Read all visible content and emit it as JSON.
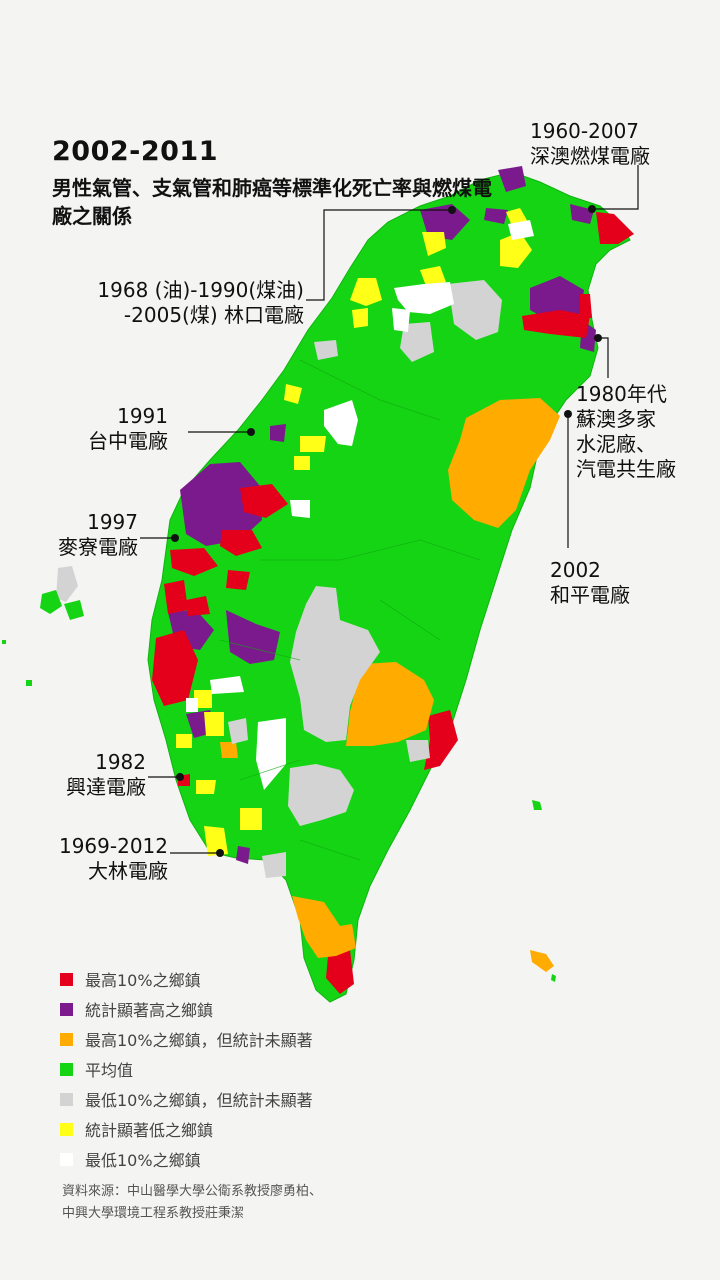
{
  "title": "2002-2011",
  "subtitle": "男性氣管、支氣管和肺癌等標準化死亡率與燃煤電廠之關係",
  "colors": {
    "red": "#e4001b",
    "purple": "#7b1a8c",
    "orange": "#ffab00",
    "green": "#14d414",
    "gray": "#d3d3d3",
    "yellow": "#ffff17",
    "white": "#ffffff"
  },
  "plants": [
    {
      "id": "shenao",
      "lines": [
        "1960-2007",
        "深澳燃煤電廠"
      ]
    },
    {
      "id": "linkou",
      "lines": [
        "1968 (油)-1990(煤油)",
        "-2005(煤) 林口電廠"
      ]
    },
    {
      "id": "suao",
      "lines": [
        "1980年代",
        "蘇澳多家",
        "水泥廠、",
        "汽電共生廠"
      ]
    },
    {
      "id": "taichung",
      "lines": [
        "1991",
        "台中電廠"
      ]
    },
    {
      "id": "mailiao",
      "lines": [
        "1997",
        "麥寮電廠"
      ]
    },
    {
      "id": "heping",
      "lines": [
        "2002",
        "和平電廠"
      ]
    },
    {
      "id": "hsinta",
      "lines": [
        "1982",
        "興達電廠"
      ]
    },
    {
      "id": "talin",
      "lines": [
        "1969-2012",
        "大林電廠"
      ]
    }
  ],
  "legend": [
    {
      "label": "最高10%之鄉鎮",
      "color": "#e4001b"
    },
    {
      "label": "統計顯著高之鄉鎮",
      "color": "#7b1a8c"
    },
    {
      "label": "最高10%之鄉鎮，但統計未顯著",
      "color": "#ffab00"
    },
    {
      "label": "平均值",
      "color": "#14d414"
    },
    {
      "label": "最低10%之鄉鎮，但統計未顯著",
      "color": "#d3d3d3"
    },
    {
      "label": "統計顯著低之鄉鎮",
      "color": "#ffff17"
    },
    {
      "label": "最低10%之鄉鎮",
      "color": "#ffffff"
    }
  ],
  "source": [
    "資料來源：中山醫學大學公衛系教授廖勇柏、",
    "中興大學環境工程系教授莊秉潔"
  ]
}
